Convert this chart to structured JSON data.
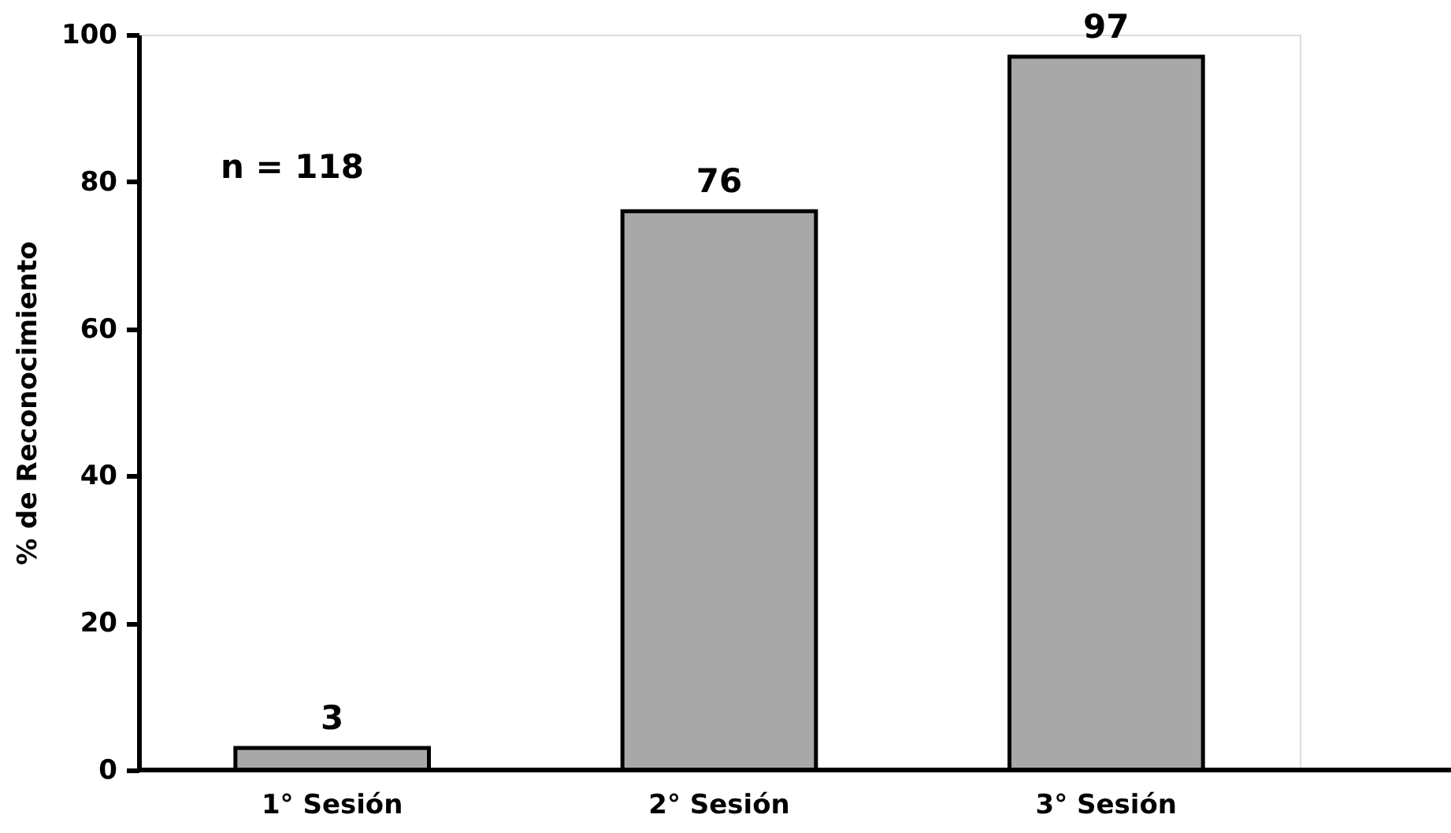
{
  "chart_data": {
    "type": "bar",
    "ylabel": "% de Reconocimiento",
    "categories": [
      "1° Sesión",
      "2° Sesión",
      "3° Sesión"
    ],
    "values": [
      3,
      76,
      97
    ],
    "color": "#a8a8a8",
    "ylim": [
      0,
      100
    ],
    "yticks": [
      0,
      20,
      40,
      60,
      80,
      100
    ],
    "grid": false,
    "data_labels": true,
    "annotations": [
      "n = 118"
    ]
  }
}
